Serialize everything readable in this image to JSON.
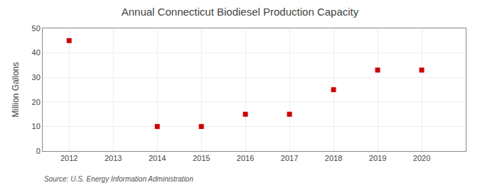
{
  "chart_data": {
    "type": "scatter",
    "title": "Annual Connecticut Biodiesel Production Capacity",
    "ylabel": "Million Gallons",
    "annotations": [
      "Source: U.S. Energy Information Administration"
    ],
    "x": [
      2012,
      2013,
      2014,
      2015,
      2016,
      2017,
      2018,
      2019,
      2020
    ],
    "values": [
      45,
      null,
      10,
      10,
      15,
      15,
      25,
      33,
      33
    ],
    "color": "#cc0000",
    "marker": "square",
    "xlim": [
      2011.4,
      2021.0
    ],
    "xticks": [
      2012,
      2013,
      2014,
      2015,
      2016,
      2017,
      2018,
      2019,
      2020
    ],
    "ylim": [
      0,
      50
    ],
    "yticks": [
      0,
      10,
      20,
      30,
      40,
      50
    ],
    "grid": true
  }
}
